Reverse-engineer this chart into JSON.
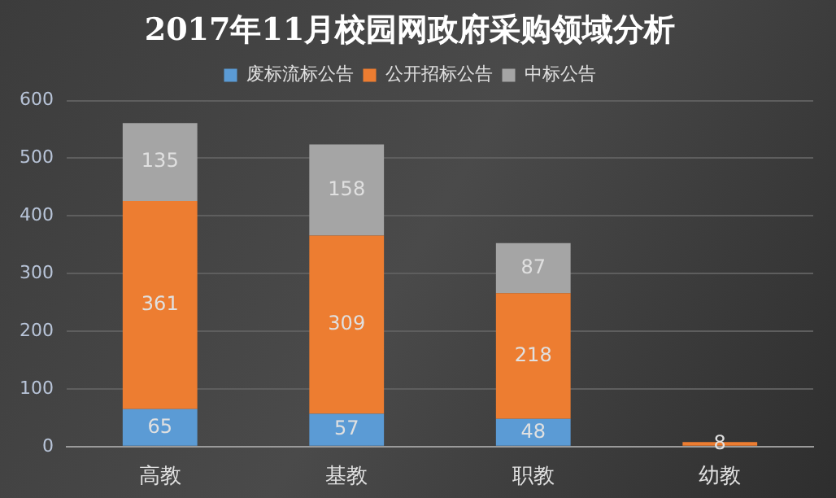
{
  "chart_data": {
    "type": "bar",
    "title": "2017年11月校园网政府采购领域分析",
    "categories": [
      "高教",
      "基教",
      "职教",
      "幼教"
    ],
    "stacked": true,
    "data_labels": true,
    "legend": "top",
    "grid": "y",
    "ylim": [
      0,
      600
    ],
    "yticks": [
      0,
      100,
      200,
      300,
      400,
      500,
      600
    ],
    "series": [
      {
        "name": "废标流标公告",
        "color": "#5b9bd5",
        "values": [
          65,
          57,
          48,
          null
        ]
      },
      {
        "name": "公开招标公告",
        "color": "#ed7d31",
        "values": [
          361,
          309,
          218,
          8
        ]
      },
      {
        "name": "中标公告",
        "color": "#a5a5a5",
        "values": [
          135,
          158,
          87,
          null
        ]
      }
    ]
  }
}
